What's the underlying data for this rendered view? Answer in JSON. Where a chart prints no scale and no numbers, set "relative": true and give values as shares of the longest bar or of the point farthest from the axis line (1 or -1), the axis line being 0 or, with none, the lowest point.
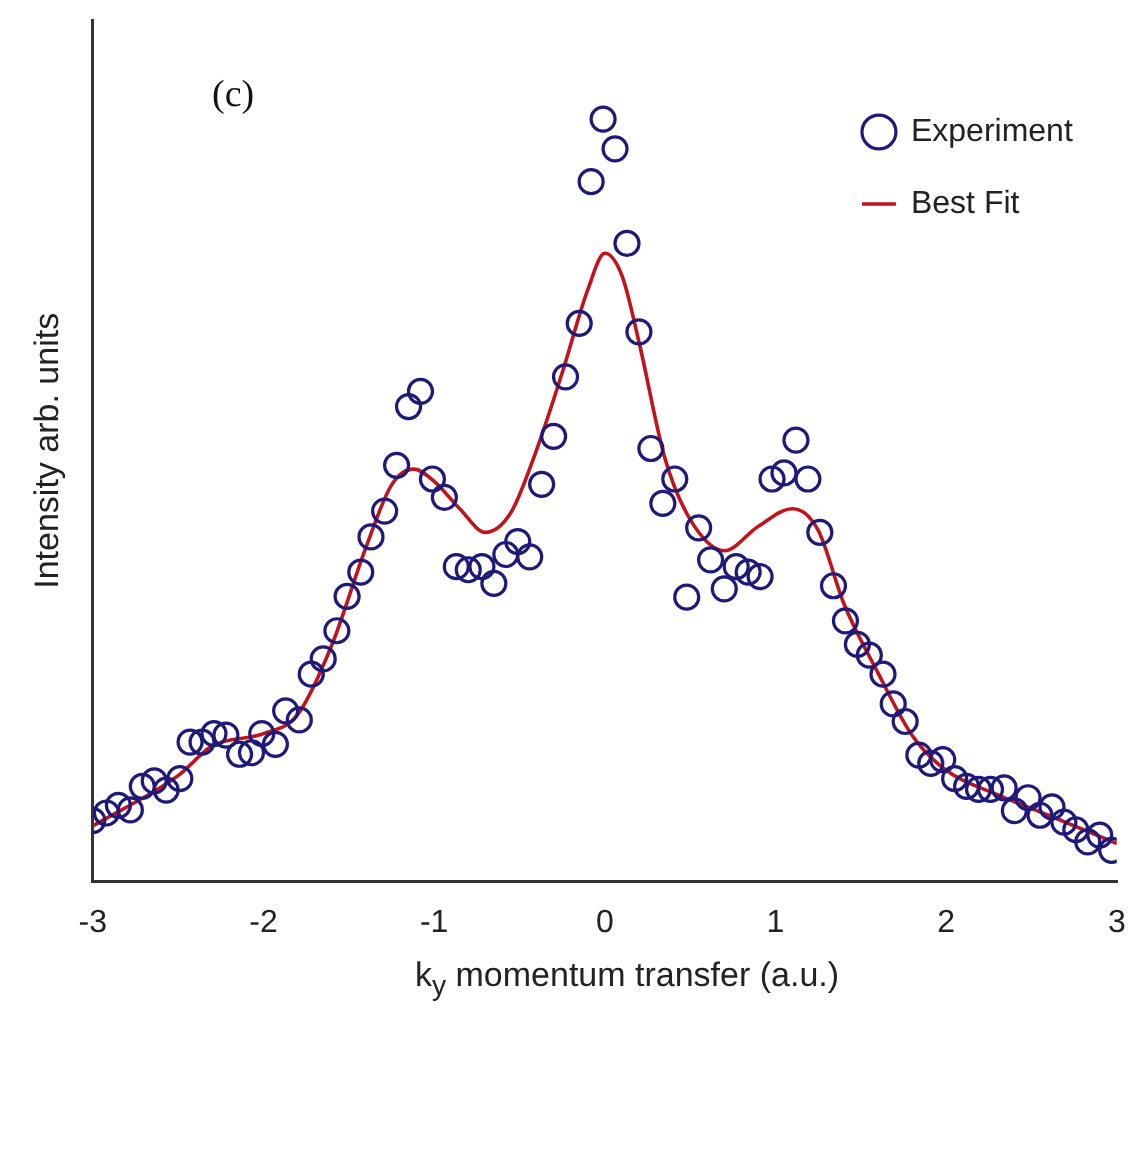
{
  "chart_data": {
    "type": "scatter",
    "relative": true,
    "xlabel": "k$_{y}$ momentum transfer (a.u.)",
    "ylabel": "Intensity arb. units",
    "annotations": [
      "(c)"
    ],
    "xlim": [
      -3,
      3
    ],
    "xticks": [
      -3,
      -2,
      -1,
      0,
      1,
      2,
      3
    ],
    "grid": false,
    "legend": "top right",
    "series": [
      {
        "name": "Experiment",
        "type": "scatter",
        "marker": "circle",
        "color": "#1f1a7a",
        "x": [
          -3.0,
          -2.92,
          -2.85,
          -2.78,
          -2.71,
          -2.64,
          -2.57,
          -2.49,
          -2.43,
          -2.36,
          -2.29,
          -2.22,
          -2.14,
          -2.07,
          -2.01,
          -1.93,
          -1.87,
          -1.79,
          -1.72,
          -1.65,
          -1.57,
          -1.51,
          -1.43,
          -1.37,
          -1.29,
          -1.22,
          -1.15,
          -1.08,
          -1.01,
          -0.94,
          -0.87,
          -0.8,
          -0.72,
          -0.65,
          -0.58,
          -0.51,
          -0.44,
          -0.37,
          -0.3,
          -0.23,
          -0.15,
          -0.08,
          -0.01,
          0.06,
          0.13,
          0.2,
          0.27,
          0.34,
          0.41,
          0.48,
          0.55,
          0.62,
          0.7,
          0.77,
          0.84,
          0.91,
          0.98,
          1.05,
          1.12,
          1.19,
          1.26,
          1.34,
          1.41,
          1.48,
          1.55,
          1.63,
          1.69,
          1.76,
          1.84,
          1.91,
          1.98,
          2.05,
          2.12,
          2.19,
          2.26,
          2.34,
          2.4,
          2.48,
          2.55,
          2.62,
          2.69,
          2.76,
          2.83,
          2.9,
          2.97
        ],
        "values": [
          0.08,
          0.09,
          0.1,
          0.094,
          0.125,
          0.132,
          0.12,
          0.135,
          0.183,
          0.183,
          0.194,
          0.192,
          0.167,
          0.169,
          0.194,
          0.18,
          0.224,
          0.212,
          0.272,
          0.292,
          0.329,
          0.374,
          0.406,
          0.452,
          0.486,
          0.546,
          0.623,
          0.643,
          0.528,
          0.504,
          0.413,
          0.409,
          0.413,
          0.391,
          0.429,
          0.446,
          0.426,
          0.521,
          0.584,
          0.662,
          0.732,
          0.918,
          1.0,
          0.961,
          0.837,
          0.721,
          0.568,
          0.496,
          0.528,
          0.373,
          0.464,
          0.422,
          0.384,
          0.413,
          0.406,
          0.4,
          0.528,
          0.536,
          0.579,
          0.528,
          0.458,
          0.388,
          0.342,
          0.311,
          0.297,
          0.272,
          0.233,
          0.21,
          0.166,
          0.155,
          0.16,
          0.135,
          0.125,
          0.121,
          0.121,
          0.123,
          0.093,
          0.11,
          0.087,
          0.098,
          0.078,
          0.068,
          0.052,
          0.061,
          0.041
        ]
      },
      {
        "name": "Best Fit",
        "type": "line",
        "marker": "none",
        "line_style": "solid",
        "color": "#c0141c",
        "x": [
          -3.0,
          -2.5,
          -2.3,
          -2.0,
          -1.8,
          -1.6,
          -1.4,
          -1.25,
          -1.12,
          -1.0,
          -0.85,
          -0.7,
          -0.55,
          -0.4,
          -0.25,
          -0.1,
          0.0,
          0.1,
          0.2,
          0.35,
          0.5,
          0.7,
          0.9,
          1.1,
          1.25,
          1.4,
          1.6,
          1.8,
          2.0,
          2.3,
          2.6,
          3.0
        ],
        "values": [
          0.073,
          0.139,
          0.178,
          0.194,
          0.219,
          0.31,
          0.438,
          0.52,
          0.541,
          0.525,
          0.489,
          0.458,
          0.484,
          0.566,
          0.667,
          0.776,
          0.824,
          0.795,
          0.708,
          0.557,
          0.475,
          0.434,
          0.466,
          0.489,
          0.461,
          0.365,
          0.274,
          0.192,
          0.146,
          0.114,
          0.087,
          0.05
        ]
      }
    ]
  }
}
